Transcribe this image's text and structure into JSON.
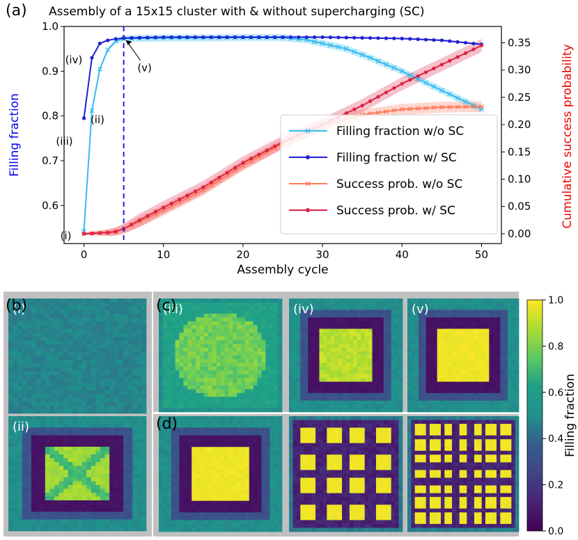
{
  "chart_data": [
    {
      "type": "line",
      "panel_label": "(a)",
      "title": "Assembly of a 15x15 cluster with & without supercharging (SC)",
      "xlabel": "Assembly cycle",
      "ylabel_left": "Filling fraction",
      "ylabel_right": "Cumulative success probability",
      "xlim": [
        -2.5,
        52.5
      ],
      "ylim_left": [
        0.515,
        1.0
      ],
      "ylim_right": [
        -0.018,
        0.38
      ],
      "x_ticks": [
        0,
        10,
        20,
        30,
        40,
        50
      ],
      "y_left_ticks": [
        0.6,
        0.7,
        0.8,
        0.9,
        1.0
      ],
      "y_right_ticks": [
        0.0,
        0.05,
        0.1,
        0.15,
        0.2,
        0.25,
        0.3,
        0.35
      ],
      "vline_x": 5,
      "legend_position": "lower-right",
      "series": [
        {
          "name": "Filling fraction w/o SC",
          "axis": "left",
          "color": "#33bbee",
          "marker": "x",
          "anchors": [
            [
              0,
              0.543
            ],
            [
              1,
              0.812
            ],
            [
              2,
              0.905
            ],
            [
              3,
              0.948
            ],
            [
              4,
              0.967
            ],
            [
              5,
              0.973
            ],
            [
              10,
              0.974
            ],
            [
              20,
              0.975
            ],
            [
              25,
              0.975
            ],
            [
              28,
              0.97
            ],
            [
              30,
              0.962
            ],
            [
              33,
              0.95
            ],
            [
              36,
              0.93
            ],
            [
              40,
              0.9
            ],
            [
              45,
              0.857
            ],
            [
              50,
              0.815
            ]
          ],
          "band": 0.008
        },
        {
          "name": "Filling fraction w/ SC",
          "axis": "left",
          "color": "#1f1fd6",
          "marker": "dot",
          "anchors": [
            [
              0,
              0.795
            ],
            [
              1,
              0.93
            ],
            [
              2,
              0.962
            ],
            [
              3,
              0.969
            ],
            [
              4,
              0.972
            ],
            [
              5,
              0.974
            ],
            [
              10,
              0.976
            ],
            [
              30,
              0.976
            ],
            [
              40,
              0.973
            ],
            [
              45,
              0.969
            ],
            [
              50,
              0.96
            ]
          ],
          "band": 0.002
        },
        {
          "name": "Success prob. w/o SC",
          "axis": "right",
          "color": "#ff7755",
          "marker": "x",
          "anchors": [
            [
              0,
              0.0
            ],
            [
              3,
              0.002
            ],
            [
              4,
              0.004
            ],
            [
              5,
              0.009
            ],
            [
              7,
              0.022
            ],
            [
              10,
              0.043
            ],
            [
              15,
              0.08
            ],
            [
              20,
              0.125
            ],
            [
              25,
              0.165
            ],
            [
              30,
              0.2
            ],
            [
              35,
              0.218
            ],
            [
              40,
              0.228
            ],
            [
              45,
              0.232
            ],
            [
              50,
              0.233
            ]
          ],
          "band": 0.01
        },
        {
          "name": "Success prob. w/ SC",
          "axis": "right",
          "color": "#dd2244",
          "marker": "dot",
          "anchors": [
            [
              0,
              0.0
            ],
            [
              3,
              0.002
            ],
            [
              4,
              0.004
            ],
            [
              5,
              0.009
            ],
            [
              7,
              0.025
            ],
            [
              10,
              0.048
            ],
            [
              15,
              0.085
            ],
            [
              20,
              0.13
            ],
            [
              25,
              0.168
            ],
            [
              30,
              0.2
            ],
            [
              35,
              0.235
            ],
            [
              40,
              0.275
            ],
            [
              45,
              0.31
            ],
            [
              50,
              0.345
            ]
          ],
          "band": 0.012
        }
      ],
      "annotations": [
        {
          "label": "(i)",
          "x": 0,
          "axis": "left",
          "y": 0.543
        },
        {
          "label": "(ii)",
          "x": 1,
          "axis": "left",
          "y": 0.812
        },
        {
          "label": "(iii)",
          "x": 0,
          "axis": "left",
          "y": 0.795
        },
        {
          "label": "(iv)",
          "x": 1,
          "axis": "left",
          "y": 0.93
        },
        {
          "label": "(v)",
          "x": 5,
          "axis": "left",
          "y": 0.974
        }
      ]
    },
    {
      "type": "heatmap",
      "panels": [
        {
          "group": "(b)",
          "label": "(i)",
          "pattern": "uniform",
          "level": 0.47
        },
        {
          "group": "(b)",
          "label": "(ii)",
          "pattern": "square-x",
          "level": 0.88
        },
        {
          "group": "(c)",
          "label": "(iii)",
          "pattern": "blob",
          "level": 0.8
        },
        {
          "group": "(c)",
          "label": "(iv)",
          "pattern": "square-speckled",
          "level": 0.95
        },
        {
          "group": "(c)",
          "label": "(v)",
          "pattern": "square",
          "level": 0.98
        },
        {
          "group": "(d)",
          "label": "",
          "pattern": "square",
          "level": 0.98
        },
        {
          "group": "(d)",
          "label": "",
          "pattern": "grid-4x4",
          "level": 0.98
        },
        {
          "group": "(d)",
          "label": "",
          "pattern": "grid-7x7",
          "level": 0.98
        }
      ],
      "colorbar": {
        "label": "Filling fraction",
        "range": [
          0.0,
          1.0
        ],
        "ticks": [
          "0.0",
          "0.2",
          "0.4",
          "0.6",
          "0.8",
          "1.0"
        ]
      }
    }
  ],
  "colors": {
    "left_axis_label": "#0000ee",
    "right_axis_label": "#ee0000",
    "vline": "#1f1fd6",
    "panel_bg": "#c0c0c0"
  }
}
